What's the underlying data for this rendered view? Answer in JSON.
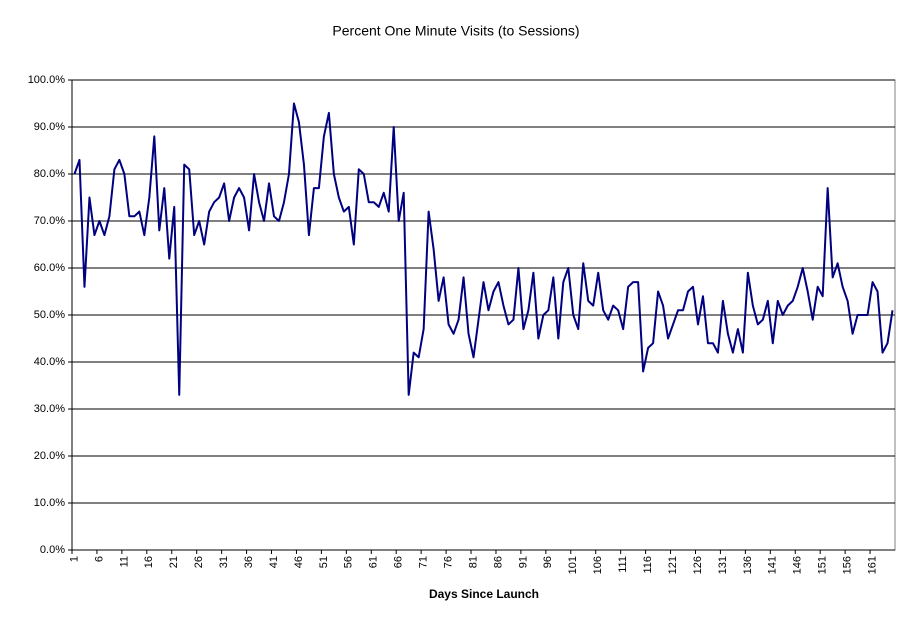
{
  "chart_data": {
    "type": "line",
    "title": "Percent One Minute Visits (to Sessions)",
    "x_label": "Days Since Launch",
    "categories": [
      "1",
      null,
      null,
      null,
      null,
      "6",
      null,
      null,
      null,
      null,
      "11",
      null,
      null,
      null,
      null,
      "16",
      null,
      null,
      null,
      null,
      "21",
      null,
      null,
      null,
      null,
      "26",
      null,
      null,
      null,
      null,
      "31",
      null,
      null,
      null,
      null,
      "36",
      null,
      null,
      null,
      null,
      "41",
      null,
      null,
      null,
      null,
      "46",
      null,
      null,
      null,
      null,
      "51",
      null,
      null,
      null,
      null,
      "56",
      null,
      null,
      null,
      null,
      "61",
      null,
      null,
      null,
      null,
      "66",
      null,
      null,
      null,
      null,
      "71",
      null,
      null,
      null,
      null,
      "76",
      null,
      null,
      null,
      null,
      "81",
      null,
      null,
      null,
      null,
      "86",
      null,
      null,
      null,
      null,
      "91",
      null,
      null,
      null,
      null,
      "96",
      null,
      null,
      null,
      null,
      "101",
      null,
      null,
      null,
      null,
      "106",
      null,
      null,
      null,
      null,
      "111",
      null,
      null,
      null,
      null,
      "116",
      null,
      null,
      null,
      null,
      "121",
      null,
      null,
      null,
      null,
      "126",
      null,
      null,
      null,
      null,
      "131",
      null,
      null,
      null,
      null,
      "136",
      null,
      null,
      null,
      null,
      "141",
      null,
      null,
      null,
      null,
      "146",
      null,
      null,
      null,
      null,
      "151",
      null,
      null,
      null,
      null,
      "156",
      null,
      null,
      null,
      null,
      "161",
      null,
      null,
      null,
      null
    ],
    "values": [
      80,
      83,
      56,
      75,
      67,
      70,
      67,
      71,
      81,
      83,
      80,
      71,
      71,
      72,
      67,
      75,
      88,
      68,
      77,
      62,
      73,
      33,
      82,
      81,
      67,
      70,
      65,
      72,
      74,
      75,
      78,
      70,
      75,
      77,
      75,
      68,
      80,
      74,
      70,
      78,
      71,
      70,
      74,
      80,
      95,
      91,
      82,
      67,
      77,
      77,
      88,
      93,
      80,
      75,
      72,
      73,
      65,
      81,
      80,
      74,
      74,
      73,
      76,
      72,
      90,
      70,
      76,
      33,
      42,
      41,
      47,
      72,
      64,
      53,
      58,
      48,
      46,
      49,
      58,
      46,
      41,
      49,
      57,
      51,
      55,
      57,
      52,
      48,
      49,
      60,
      47,
      51,
      59,
      45,
      50,
      51,
      58,
      45,
      57,
      60,
      50,
      47,
      61,
      53,
      52,
      59,
      51,
      49,
      52,
      51,
      47,
      56,
      57,
      57,
      38,
      43,
      44,
      55,
      52,
      45,
      48,
      51,
      51,
      55,
      56,
      48,
      54,
      44,
      44,
      42,
      53,
      46,
      42,
      47,
      42,
      59,
      52,
      48,
      49,
      53,
      44,
      53,
      50,
      52,
      53,
      56,
      60,
      55,
      49,
      56,
      54,
      77,
      58,
      61,
      56,
      53,
      46,
      50,
      50,
      50,
      57,
      55,
      42,
      44,
      51
    ],
    "color": "#000080",
    "ylim": [
      0,
      100
    ],
    "yticks": [
      {
        "value": 0,
        "label": "0.0%"
      },
      {
        "value": 10,
        "label": "10.0%"
      },
      {
        "value": 20,
        "label": "20.0%"
      },
      {
        "value": 30,
        "label": "30.0%"
      },
      {
        "value": 40,
        "label": "40.0%"
      },
      {
        "value": 50,
        "label": "50.0%"
      },
      {
        "value": 60,
        "label": "60.0%"
      },
      {
        "value": 70,
        "label": "70.0%"
      },
      {
        "value": 80,
        "label": "80.0%"
      },
      {
        "value": 90,
        "label": "90.0%"
      },
      {
        "value": 100,
        "label": "100.0%"
      }
    ],
    "grid": true
  }
}
